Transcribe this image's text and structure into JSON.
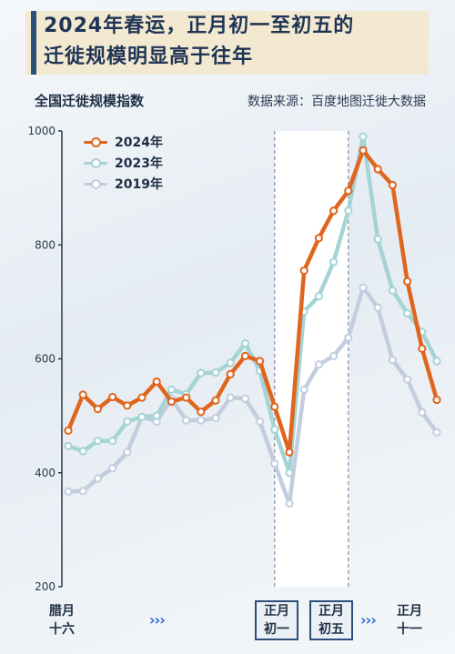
{
  "title": {
    "line1": "2024年春运，正月初一至初五的",
    "line2": "迁徙规模明显高于往年"
  },
  "subtitle_left": "全国迁徙规模指数",
  "source": "数据来源：百度地图迁徙大数据",
  "x_labels": {
    "start": [
      "腊月",
      "十六"
    ],
    "day1": [
      "正月",
      "初一"
    ],
    "day5": [
      "正月",
      "初五"
    ],
    "end": [
      "正月",
      "十一"
    ],
    "arrows1": "›››",
    "arrows2": "›››"
  },
  "colors": {
    "2024": "#e0651e",
    "2023": "#a6d3d6",
    "2019": "#c3cde0",
    "highlight": "#ffffff",
    "grid": "#cfd8e2"
  },
  "chart_data": {
    "type": "line",
    "ylabel": "全国迁徙规模指数",
    "ylim": [
      200,
      1000
    ],
    "yticks": [
      200,
      400,
      600,
      800,
      1000
    ],
    "highlight_range": [
      14,
      19
    ],
    "series": [
      {
        "name": "2024年",
        "values": [
          474,
          537,
          512,
          533,
          518,
          532,
          560,
          525,
          532,
          507,
          527,
          573,
          605,
          596,
          516,
          436,
          755,
          812,
          860,
          895,
          966,
          933,
          905,
          736,
          618,
          528
        ]
      },
      {
        "name": "2023年",
        "values": [
          447,
          438,
          456,
          456,
          490,
          498,
          500,
          546,
          538,
          575,
          576,
          593,
          627,
          579,
          476,
          400,
          683,
          710,
          770,
          860,
          990,
          810,
          720,
          680,
          647,
          596
        ]
      },
      {
        "name": "2019年",
        "values": [
          367,
          368,
          390,
          408,
          436,
          498,
          490,
          530,
          492,
          492,
          496,
          532,
          530,
          490,
          416,
          346,
          546,
          590,
          605,
          637,
          725,
          690,
          598,
          564,
          506,
          471
        ]
      }
    ]
  }
}
